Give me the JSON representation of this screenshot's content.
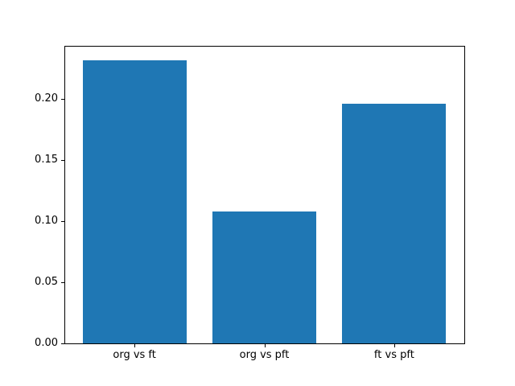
{
  "figure": {
    "background_color": "#ffffff",
    "spine_color": "#000000",
    "text_color": "#000000"
  },
  "chart_data": {
    "type": "bar",
    "title": "",
    "xlabel": "",
    "ylabel": "",
    "categories": [
      "org vs ft",
      "org vs pft",
      "ft vs pft"
    ],
    "values": [
      0.232,
      0.108,
      0.196
    ],
    "bar_color": "#1f77b4",
    "bar_width": 0.8,
    "xlim": [
      -0.54,
      2.54
    ],
    "ylim": [
      0,
      0.2436
    ],
    "yticks": [
      0.0,
      0.05,
      0.1,
      0.15,
      0.2
    ],
    "ytick_labels": [
      "0.00",
      "0.05",
      "0.10",
      "0.15",
      "0.20"
    ],
    "grid": false,
    "legend": null
  }
}
